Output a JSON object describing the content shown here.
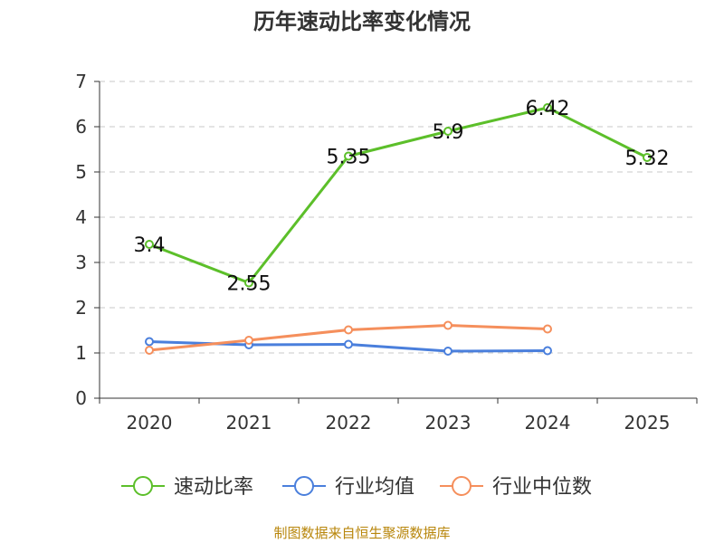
{
  "chart_data": {
    "type": "line",
    "title": "历年速动比率变化情况",
    "categories": [
      "2020",
      "2021",
      "2022",
      "2023",
      "2024",
      "2025"
    ],
    "ylim": [
      0,
      7
    ],
    "yticks": [
      "0",
      "1",
      "2",
      "3",
      "4",
      "5",
      "6",
      "7"
    ],
    "grid": true,
    "legend_position": "bottom",
    "series": [
      {
        "name": "速动比率",
        "color": "#5cbf2a",
        "values": [
          3.4,
          2.55,
          5.35,
          5.9,
          6.42,
          5.32
        ],
        "labels": [
          "3.4",
          "2.55",
          "5.35",
          "5.9",
          "6.42",
          "5.32"
        ]
      },
      {
        "name": "行业均值",
        "color": "#4a7fdc",
        "values": [
          1.25,
          1.18,
          1.19,
          1.04,
          1.05,
          null
        ]
      },
      {
        "name": "行业中位数",
        "color": "#f58f5c",
        "values": [
          1.06,
          1.28,
          1.51,
          1.61,
          1.53,
          null
        ]
      }
    ]
  },
  "footer": {
    "source": "制图数据来自恒生聚源数据库"
  }
}
